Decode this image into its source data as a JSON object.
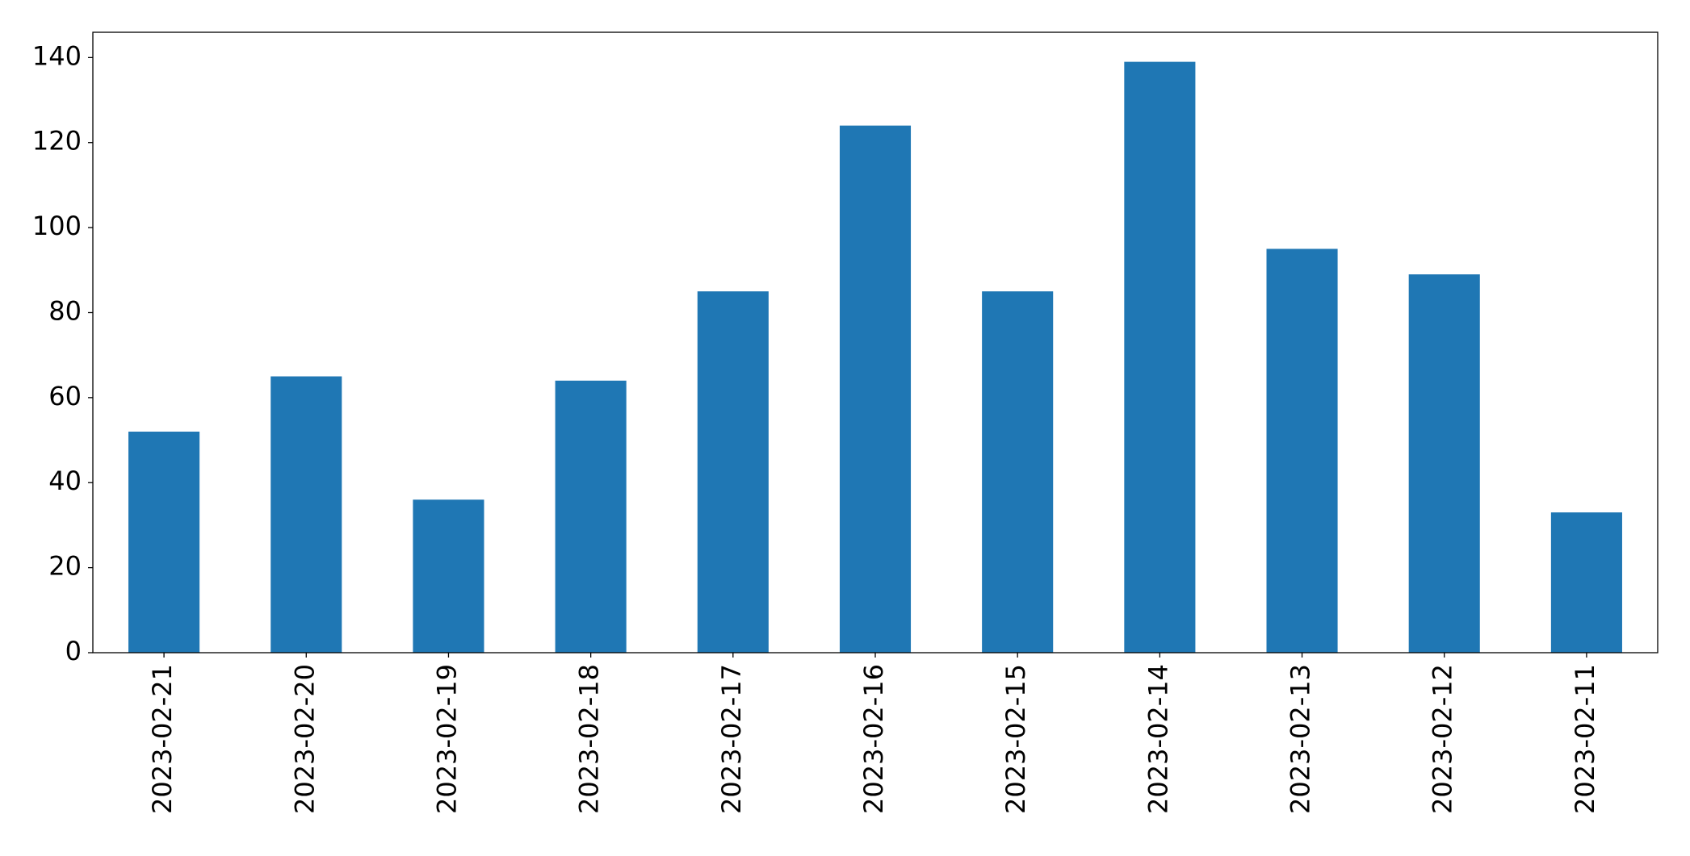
{
  "chart_data": {
    "type": "bar",
    "categories": [
      "2023-02-21",
      "2023-02-20",
      "2023-02-19",
      "2023-02-18",
      "2023-02-17",
      "2023-02-16",
      "2023-02-15",
      "2023-02-14",
      "2023-02-13",
      "2023-02-12",
      "2023-02-11"
    ],
    "values": [
      52,
      65,
      36,
      64,
      85,
      124,
      85,
      139,
      95,
      89,
      33
    ],
    "color": "#1f77b4",
    "ylim": [
      0,
      145.95
    ],
    "yticks": [
      0,
      20,
      40,
      60,
      80,
      100,
      120,
      140
    ],
    "grid": false
  }
}
